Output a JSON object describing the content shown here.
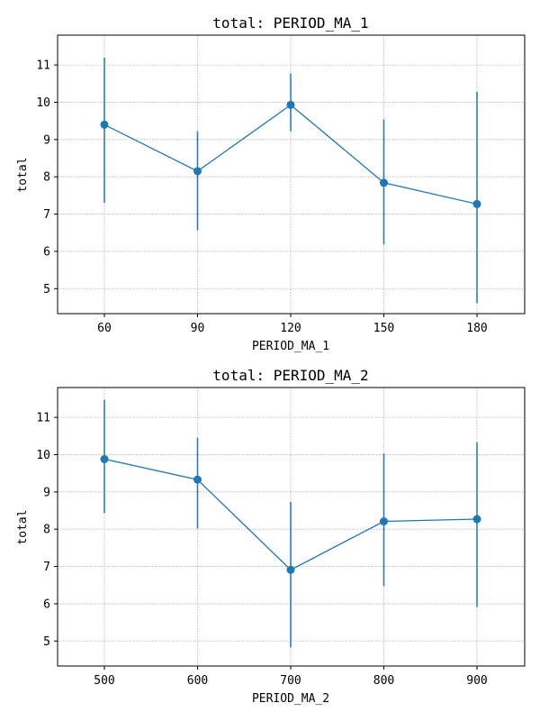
{
  "colors": {
    "series": "#1f77b4",
    "grid": "#b0b0b0",
    "axes": "#000000"
  },
  "chart_data": [
    {
      "type": "line",
      "title": "total: PERIOD_MA_1",
      "xlabel": "PERIOD_MA_1",
      "ylabel": "total",
      "categories": [
        "60",
        "90",
        "120",
        "150",
        "180"
      ],
      "values": [
        9.4,
        8.15,
        9.93,
        7.84,
        7.27
      ],
      "error_low": [
        7.3,
        6.57,
        9.22,
        6.18,
        4.61
      ],
      "error_high": [
        11.2,
        9.22,
        10.77,
        9.54,
        10.28
      ],
      "ylim": [
        4.33,
        11.8
      ],
      "yticks": [
        5,
        6,
        7,
        8,
        9,
        10,
        11
      ],
      "grid": true
    },
    {
      "type": "line",
      "title": "total: PERIOD_MA_2",
      "xlabel": "PERIOD_MA_2",
      "ylabel": "total",
      "categories": [
        "500",
        "600",
        "700",
        "800",
        "900"
      ],
      "values": [
        9.88,
        9.33,
        6.91,
        8.21,
        8.27
      ],
      "error_low": [
        8.43,
        8.02,
        4.83,
        6.47,
        5.92
      ],
      "error_high": [
        11.47,
        10.45,
        8.73,
        10.02,
        10.33
      ],
      "ylim": [
        4.33,
        11.8
      ],
      "yticks": [
        5,
        6,
        7,
        8,
        9,
        10,
        11
      ],
      "grid": true
    }
  ]
}
